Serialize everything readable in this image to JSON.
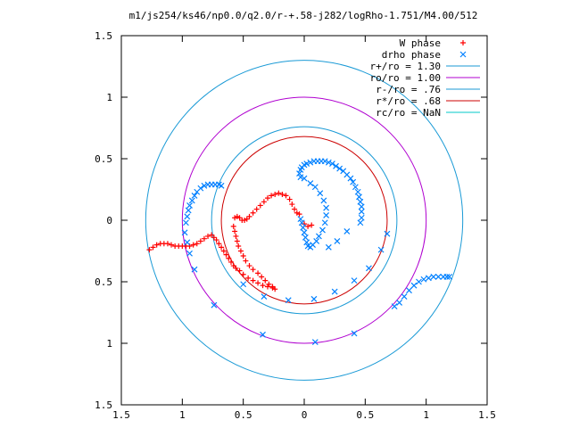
{
  "chart_data": {
    "type": "scatter",
    "title": "m1/js254/ks46/np0.0/q2.0/r-+.58-j282/logRho-1.751/M4.00/512",
    "xlabel": "",
    "ylabel": "",
    "xlim": [
      -1.5,
      1.5
    ],
    "ylim": [
      -1.5,
      1.5
    ],
    "x_tick_labels": [
      "1.5",
      "1",
      "0.5",
      "0",
      "0.5",
      "1",
      "1.5"
    ],
    "y_tick_labels": [
      "1.5",
      "1",
      "0.5",
      "0",
      "0.5",
      "1",
      "1.5"
    ],
    "grid": false,
    "legend_position": "top-right",
    "legend": [
      {
        "label": "W phase",
        "marker": "plus",
        "color": "#ff0000"
      },
      {
        "label": "drho phase",
        "marker": "cross",
        "color": "#0080ff"
      },
      {
        "label": "r+/ro = 1.30",
        "marker": "line",
        "color": "#1a9ad6"
      },
      {
        "label": "ro/ro = 1.00",
        "marker": "line",
        "color": "#b000d0"
      },
      {
        "label": "r-/ro = .76",
        "marker": "line",
        "color": "#1a9ad6"
      },
      {
        "label": "r*/ro = .68",
        "marker": "line",
        "color": "#cc0000"
      },
      {
        "label": "rc/ro = NaN",
        "marker": "line",
        "color": "#00c8c8"
      }
    ],
    "circles": [
      {
        "r": 1.3,
        "color": "#1a9ad6"
      },
      {
        "r": 1.0,
        "color": "#b000d0"
      },
      {
        "r": 0.76,
        "color": "#1a9ad6"
      },
      {
        "r": 0.68,
        "color": "#cc0000"
      }
    ],
    "series": [
      {
        "name": "W phase",
        "marker": "plus",
        "color": "#ff0000",
        "points": [
          [
            -1.27,
            -0.24
          ],
          [
            -1.24,
            -0.22
          ],
          [
            -1.21,
            -0.2
          ],
          [
            -1.18,
            -0.19
          ],
          [
            -1.15,
            -0.19
          ],
          [
            -1.12,
            -0.19
          ],
          [
            -1.09,
            -0.2
          ],
          [
            -1.06,
            -0.21
          ],
          [
            -1.03,
            -0.21
          ],
          [
            -1.0,
            -0.21
          ],
          [
            -0.97,
            -0.21
          ],
          [
            -0.94,
            -0.21
          ],
          [
            -0.91,
            -0.2
          ],
          [
            -0.88,
            -0.19
          ],
          [
            -0.85,
            -0.17
          ],
          [
            -0.82,
            -0.15
          ],
          [
            -0.79,
            -0.13
          ],
          [
            -0.76,
            -0.12
          ],
          [
            -0.74,
            -0.14
          ],
          [
            -0.72,
            -0.16
          ],
          [
            -0.7,
            -0.19
          ],
          [
            -0.68,
            -0.22
          ],
          [
            -0.66,
            -0.25
          ],
          [
            -0.64,
            -0.28
          ],
          [
            -0.62,
            -0.31
          ],
          [
            -0.6,
            -0.34
          ],
          [
            -0.58,
            -0.37
          ],
          [
            -0.56,
            -0.39
          ],
          [
            -0.53,
            -0.41
          ],
          [
            -0.5,
            -0.44
          ],
          [
            -0.46,
            -0.47
          ],
          [
            -0.42,
            -0.49
          ],
          [
            -0.38,
            -0.51
          ],
          [
            -0.34,
            -0.53
          ],
          [
            -0.3,
            -0.54
          ],
          [
            -0.26,
            -0.55
          ],
          [
            -0.24,
            -0.56
          ],
          [
            -0.58,
            -0.05
          ],
          [
            -0.57,
            -0.09
          ],
          [
            -0.56,
            -0.13
          ],
          [
            -0.55,
            -0.17
          ],
          [
            -0.54,
            -0.21
          ],
          [
            -0.52,
            -0.25
          ],
          [
            -0.5,
            -0.29
          ],
          [
            -0.48,
            -0.33
          ],
          [
            -0.45,
            -0.37
          ],
          [
            -0.42,
            -0.4
          ],
          [
            -0.38,
            -0.43
          ],
          [
            -0.35,
            -0.46
          ],
          [
            -0.32,
            -0.49
          ],
          [
            -0.29,
            -0.52
          ],
          [
            -0.26,
            -0.54
          ],
          [
            -0.57,
            0.02
          ],
          [
            -0.55,
            0.03
          ],
          [
            -0.53,
            0.02
          ],
          [
            -0.51,
            0.0
          ],
          [
            -0.49,
            0.0
          ],
          [
            -0.47,
            0.01
          ],
          [
            -0.45,
            0.03
          ],
          [
            -0.42,
            0.06
          ],
          [
            -0.39,
            0.09
          ],
          [
            -0.36,
            0.12
          ],
          [
            -0.33,
            0.15
          ],
          [
            -0.3,
            0.18
          ],
          [
            -0.27,
            0.2
          ],
          [
            -0.24,
            0.21
          ],
          [
            -0.21,
            0.22
          ],
          [
            -0.18,
            0.21
          ],
          [
            -0.15,
            0.2
          ],
          [
            -0.12,
            0.17
          ],
          [
            -0.1,
            0.13
          ],
          [
            -0.08,
            0.09
          ],
          [
            -0.06,
            0.06
          ],
          [
            -0.04,
            0.05
          ],
          [
            0.0,
            -0.03
          ],
          [
            0.03,
            -0.05
          ],
          [
            0.06,
            -0.04
          ]
        ]
      },
      {
        "name": "drho phase",
        "marker": "cross",
        "color": "#0080ff",
        "points": [
          [
            -0.97,
            -0.02
          ],
          [
            -0.96,
            0.03
          ],
          [
            -0.95,
            0.08
          ],
          [
            -0.94,
            0.12
          ],
          [
            -0.92,
            0.16
          ],
          [
            -0.9,
            0.2
          ],
          [
            -0.88,
            0.23
          ],
          [
            -0.85,
            0.26
          ],
          [
            -0.82,
            0.28
          ],
          [
            -0.79,
            0.29
          ],
          [
            -0.76,
            0.29
          ],
          [
            -0.73,
            0.29
          ],
          [
            -0.7,
            0.29
          ],
          [
            -0.68,
            0.28
          ],
          [
            -0.98,
            -0.1
          ],
          [
            -0.96,
            -0.18
          ],
          [
            -0.94,
            -0.27
          ],
          [
            -0.9,
            -0.4
          ],
          [
            -0.74,
            -0.69
          ],
          [
            -0.34,
            -0.93
          ],
          [
            0.09,
            -0.99
          ],
          [
            0.41,
            -0.92
          ],
          [
            0.74,
            -0.7
          ],
          [
            -0.5,
            -0.52
          ],
          [
            -0.33,
            -0.62
          ],
          [
            -0.13,
            -0.65
          ],
          [
            0.08,
            -0.64
          ],
          [
            0.25,
            -0.58
          ],
          [
            0.41,
            -0.49
          ],
          [
            0.53,
            -0.39
          ],
          [
            0.63,
            -0.24
          ],
          [
            0.68,
            -0.11
          ],
          [
            0.78,
            -0.67
          ],
          [
            0.82,
            -0.62
          ],
          [
            0.86,
            -0.57
          ],
          [
            0.9,
            -0.53
          ],
          [
            0.94,
            -0.5
          ],
          [
            0.98,
            -0.48
          ],
          [
            1.02,
            -0.47
          ],
          [
            1.06,
            -0.46
          ],
          [
            1.1,
            -0.46
          ],
          [
            1.14,
            -0.46
          ],
          [
            1.17,
            -0.46
          ],
          [
            1.19,
            -0.46
          ],
          [
            -0.04,
            0.38
          ],
          [
            -0.03,
            0.41
          ],
          [
            -0.02,
            0.43
          ],
          [
            0.0,
            0.45
          ],
          [
            0.02,
            0.46
          ],
          [
            0.05,
            0.47
          ],
          [
            0.08,
            0.48
          ],
          [
            0.11,
            0.48
          ],
          [
            0.14,
            0.48
          ],
          [
            0.17,
            0.48
          ],
          [
            0.2,
            0.47
          ],
          [
            0.23,
            0.46
          ],
          [
            0.26,
            0.44
          ],
          [
            0.29,
            0.42
          ],
          [
            0.32,
            0.4
          ],
          [
            0.35,
            0.37
          ],
          [
            0.38,
            0.34
          ],
          [
            0.4,
            0.31
          ],
          [
            0.42,
            0.27
          ],
          [
            0.44,
            0.23
          ],
          [
            0.45,
            0.19
          ],
          [
            0.46,
            0.15
          ],
          [
            0.47,
            0.11
          ],
          [
            0.47,
            0.07
          ],
          [
            0.47,
            0.02
          ],
          [
            0.46,
            -0.02
          ],
          [
            -0.03,
            0.35
          ],
          [
            0.0,
            0.34
          ],
          [
            0.05,
            0.3
          ],
          [
            0.09,
            0.27
          ],
          [
            0.13,
            0.22
          ],
          [
            0.16,
            0.16
          ],
          [
            0.18,
            0.1
          ],
          [
            0.18,
            0.04
          ],
          [
            0.17,
            -0.02
          ],
          [
            0.15,
            -0.08
          ],
          [
            0.12,
            -0.13
          ],
          [
            0.1,
            -0.17
          ],
          [
            0.07,
            -0.2
          ],
          [
            0.05,
            -0.22
          ],
          [
            0.03,
            -0.21
          ],
          [
            0.02,
            -0.18
          ],
          [
            0.01,
            -0.14
          ],
          [
            0.0,
            -0.1
          ],
          [
            -0.01,
            -0.06
          ],
          [
            -0.02,
            -0.02
          ],
          [
            -0.03,
            0.01
          ],
          [
            0.35,
            -0.09
          ],
          [
            0.27,
            -0.17
          ],
          [
            0.2,
            -0.22
          ]
        ]
      }
    ]
  }
}
